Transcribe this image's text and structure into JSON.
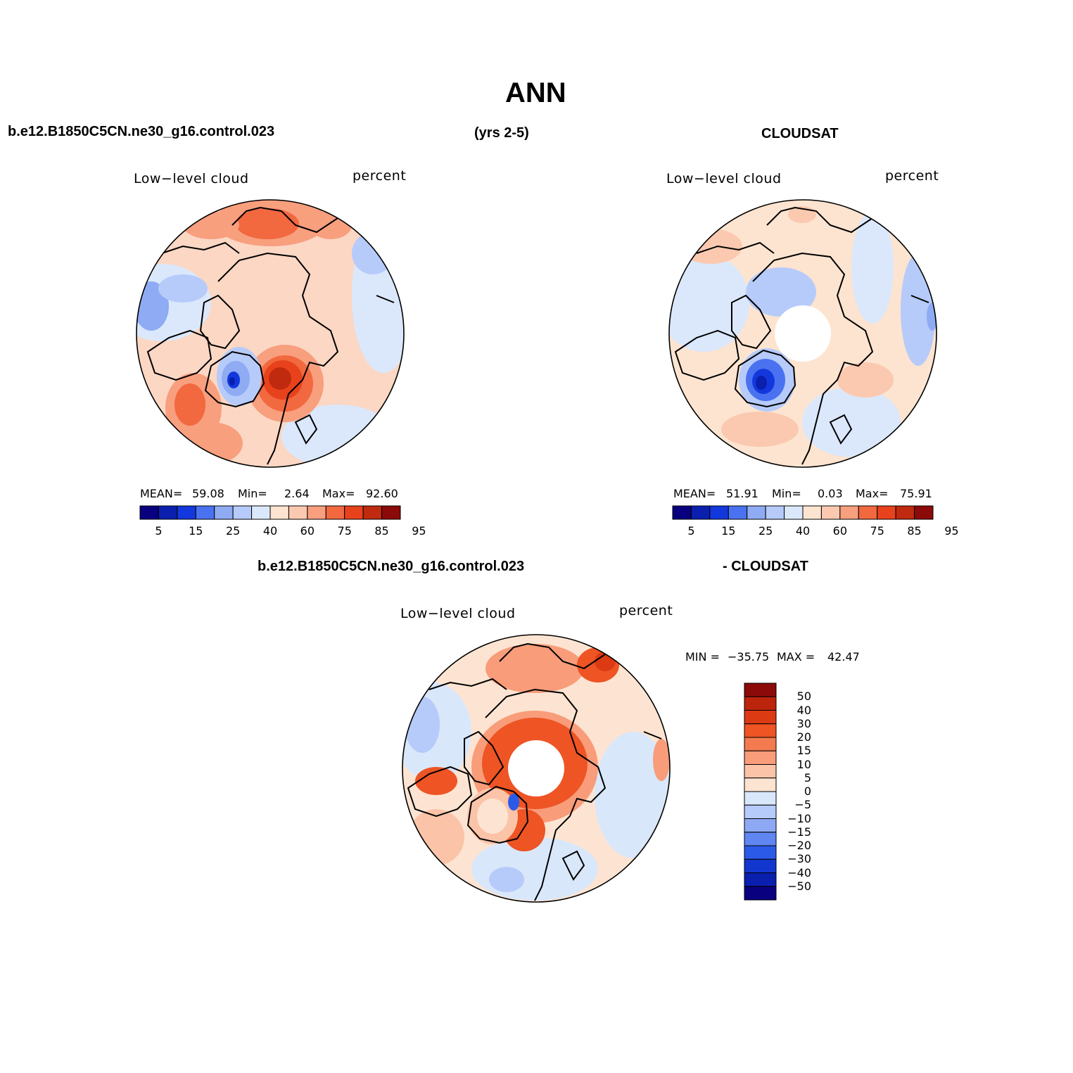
{
  "title": "ANN",
  "header": {
    "case_name": "b.e12.B1850C5CN.ne30_g16.control.023",
    "years": "(yrs 2-5)",
    "obs_name": "CLOUDSAT"
  },
  "diff_header": {
    "case_name": "b.e12.B1850C5CN.ne30_g16.control.023",
    "obs_name": "- CLOUDSAT"
  },
  "panels": {
    "model": {
      "variable": "Low−level cloud",
      "units": "percent",
      "stats": {
        "mean_label": "MEAN=",
        "mean": "59.08",
        "min_label": "Min=",
        "min": "2.64",
        "max_label": "Max=",
        "max": "92.60"
      },
      "colorbar_labels": [
        "5",
        "15",
        "25",
        "40",
        "60",
        "75",
        "85",
        "95"
      ]
    },
    "obs": {
      "variable": "Low−level cloud",
      "units": "percent",
      "stats": {
        "mean_label": "MEAN=",
        "mean": "51.91",
        "min_label": "Min=",
        "min": "0.03",
        "max_label": "Max=",
        "max": "75.91"
      },
      "colorbar_labels": [
        "5",
        "15",
        "25",
        "40",
        "60",
        "75",
        "85",
        "95"
      ]
    },
    "diff": {
      "variable": "Low−level cloud",
      "units": "percent",
      "stats": {
        "min_label": "MIN =",
        "min": "−35.75",
        "max_label": "MAX =",
        "max": "42.47"
      },
      "colorbar_labels": [
        "50",
        "40",
        "30",
        "20",
        "15",
        "10",
        "5",
        "0",
        "−5",
        "−10",
        "−15",
        "−20",
        "−30",
        "−40",
        "−50"
      ]
    }
  },
  "colors": {
    "abs_scale": [
      "#08007f",
      "#0a1fae",
      "#1238dd",
      "#4a72f0",
      "#8eabf4",
      "#b6cbfa",
      "#dbe8fb",
      "#fde4d0",
      "#fbc9b0",
      "#f89f7e",
      "#f2683f",
      "#e8421c",
      "#c02a0e",
      "#8c0a0a"
    ],
    "diff_scale": [
      "#8c0a0a",
      "#bd240c",
      "#dc3a12",
      "#ee5424",
      "#f47a50",
      "#f89c7a",
      "#fbc4a8",
      "#fde4d2",
      "#d9e7fa",
      "#b7cbfa",
      "#8ea9f4",
      "#5f86f1",
      "#2c5ae8",
      "#1237cf",
      "#0a1fae",
      "#08007f"
    ]
  }
}
